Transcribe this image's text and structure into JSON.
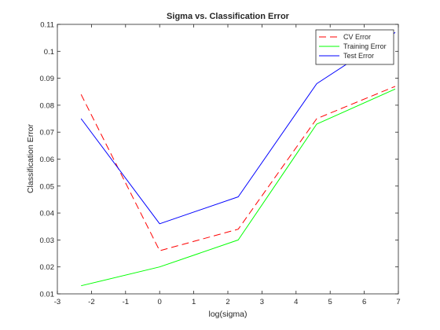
{
  "chart_data": {
    "type": "line",
    "title": "Sigma vs. Classification Error",
    "xlabel": "log(sigma)",
    "ylabel": "Classification Error",
    "xlim": [
      -3,
      7
    ],
    "ylim": [
      0.01,
      0.11
    ],
    "xticks": [
      -3,
      -2,
      -1,
      0,
      1,
      2,
      3,
      4,
      5,
      6,
      7
    ],
    "yticks": [
      0.01,
      0.02,
      0.03,
      0.04,
      0.05,
      0.06,
      0.07,
      0.08,
      0.09,
      0.1,
      0.11
    ],
    "x": [
      -2.303,
      0,
      2.303,
      4.605,
      6.908
    ],
    "grid": false,
    "legend_position": "top-right",
    "series": [
      {
        "name": "CV Error",
        "color": "#ff0000",
        "dashed": true,
        "values": [
          0.084,
          0.026,
          0.034,
          0.075,
          0.087
        ]
      },
      {
        "name": "Training Error",
        "color": "#00ff00",
        "dashed": false,
        "values": [
          0.013,
          0.02,
          0.03,
          0.073,
          0.086
        ]
      },
      {
        "name": "Test Error",
        "color": "#0000ff",
        "dashed": false,
        "values": [
          0.075,
          0.036,
          0.046,
          0.088,
          0.107
        ]
      }
    ]
  }
}
